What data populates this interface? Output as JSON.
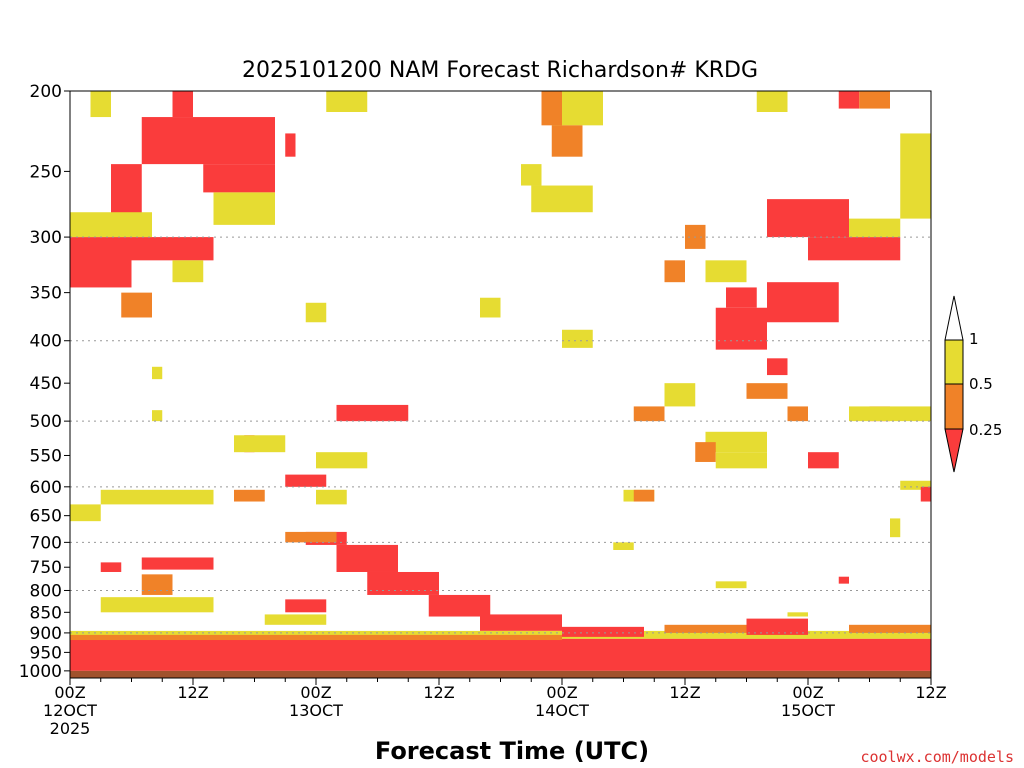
{
  "chart_data": {
    "type": "heatmap",
    "title": "2025101200 NAM Forecast Richardson# KRDG",
    "xlabel": "Forecast Time (UTC)",
    "credit": "coolwx.com/models",
    "x_ticks": [
      {
        "hour": 0,
        "line1": "00Z",
        "line2": "12OCT",
        "line3": "2025"
      },
      {
        "hour": 12,
        "line1": "12Z",
        "line2": "",
        "line3": ""
      },
      {
        "hour": 24,
        "line1": "00Z",
        "line2": "13OCT",
        "line3": ""
      },
      {
        "hour": 36,
        "line1": "12Z",
        "line2": "",
        "line3": ""
      },
      {
        "hour": 48,
        "line1": "00Z",
        "line2": "14OCT",
        "line3": ""
      },
      {
        "hour": 60,
        "line1": "12Z",
        "line2": "",
        "line3": ""
      },
      {
        "hour": 72,
        "line1": "00Z",
        "line2": "15OCT",
        "line3": ""
      },
      {
        "hour": 84,
        "line1": "12Z",
        "line2": "",
        "line3": ""
      }
    ],
    "xlim": [
      0,
      84
    ],
    "y_ticks": [
      "200",
      "250",
      "300",
      "350",
      "400",
      "450",
      "500",
      "550",
      "600",
      "650",
      "700",
      "750",
      "800",
      "850",
      "900",
      "950",
      "1000"
    ],
    "ylim": [
      1020,
      200
    ],
    "y_scale": "log",
    "grid": "dotted at 300, 400, 500, 600, 700, 800, 900",
    "legend": {
      "placement": "right",
      "labels": [
        "1",
        "0.5",
        "0.25"
      ],
      "colors": {
        "ge_1": "#ffffff",
        "0.5_to_1": "#e6dc32",
        "0.25_to_0.5": "#f08228",
        "lt_0.25": "#fa3c3c"
      }
    },
    "ground_color": "#a0522d",
    "regions": [
      {
        "level": "lt_0.25",
        "t0": 0,
        "t1": 6,
        "p0": 300,
        "p1": 345
      },
      {
        "level": "lt_0.25",
        "t0": 6,
        "t1": 14,
        "p0": 300,
        "p1": 320
      },
      {
        "level": "lt_0.25",
        "t0": 4,
        "t1": 7,
        "p0": 245,
        "p1": 300
      },
      {
        "level": "lt_0.25",
        "t0": 7,
        "t1": 20,
        "p0": 215,
        "p1": 245
      },
      {
        "level": "lt_0.25",
        "t0": 13,
        "t1": 20,
        "p0": 245,
        "p1": 265
      },
      {
        "level": "lt_0.25",
        "t0": 10,
        "t1": 12,
        "p0": 200,
        "p1": 215
      },
      {
        "level": "lt_0.25",
        "t0": 21,
        "t1": 22,
        "p0": 225,
        "p1": 240
      },
      {
        "level": "0.25_to_0.5",
        "t0": 5,
        "t1": 8,
        "p0": 350,
        "p1": 375
      },
      {
        "level": "0.5_to_1",
        "t0": 0,
        "t1": 8,
        "p0": 280,
        "p1": 300
      },
      {
        "level": "0.5_to_1",
        "t0": 2,
        "t1": 4,
        "p0": 200,
        "p1": 215
      },
      {
        "level": "0.5_to_1",
        "t0": 14,
        "t1": 20,
        "p0": 265,
        "p1": 290
      },
      {
        "level": "0.5_to_1",
        "t0": 10,
        "t1": 13,
        "p0": 320,
        "p1": 340
      },
      {
        "level": "0.5_to_1",
        "t0": 23,
        "t1": 25,
        "p0": 360,
        "p1": 380
      },
      {
        "level": "0.5_to_1",
        "t0": 8,
        "t1": 9,
        "p0": 430,
        "p1": 445
      },
      {
        "level": "0.5_to_1",
        "t0": 8,
        "t1": 9,
        "p0": 485,
        "p1": 500
      },
      {
        "level": "lt_0.25",
        "t0": 26,
        "t1": 33,
        "p0": 478,
        "p1": 500
      },
      {
        "level": "0.5_to_1",
        "t0": 24,
        "t1": 29,
        "p0": 545,
        "p1": 570
      },
      {
        "level": "lt_0.25",
        "t0": 21,
        "t1": 25,
        "p0": 580,
        "p1": 600
      },
      {
        "level": "lt_0.25",
        "t0": 17,
        "t1": 18,
        "p0": 520,
        "p1": 545
      },
      {
        "level": "0.5_to_1",
        "t0": 16,
        "t1": 21,
        "p0": 520,
        "p1": 545
      },
      {
        "level": "0.5_to_1",
        "t0": 3,
        "t1": 14,
        "p0": 605,
        "p1": 630
      },
      {
        "level": "0.5_to_1",
        "t0": 0,
        "t1": 3,
        "p0": 630,
        "p1": 660
      },
      {
        "level": "0.25_to_0.5",
        "t0": 16,
        "t1": 19,
        "p0": 605,
        "p1": 625
      },
      {
        "level": "0.5_to_1",
        "t0": 24,
        "t1": 27,
        "p0": 605,
        "p1": 630
      },
      {
        "level": "lt_0.25",
        "t0": 23,
        "t1": 27,
        "p0": 680,
        "p1": 705
      },
      {
        "level": "lt_0.25",
        "t0": 26,
        "t1": 32,
        "p0": 705,
        "p1": 760
      },
      {
        "level": "lt_0.25",
        "t0": 29,
        "t1": 36,
        "p0": 760,
        "p1": 810
      },
      {
        "level": "lt_0.25",
        "t0": 35,
        "t1": 41,
        "p0": 810,
        "p1": 860
      },
      {
        "level": "lt_0.25",
        "t0": 40,
        "t1": 48,
        "p0": 855,
        "p1": 895
      },
      {
        "level": "0.25_to_0.5",
        "t0": 21,
        "t1": 26,
        "p0": 680,
        "p1": 700
      },
      {
        "level": "lt_0.25",
        "t0": 3,
        "t1": 5,
        "p0": 740,
        "p1": 760
      },
      {
        "level": "lt_0.25",
        "t0": 7,
        "t1": 14,
        "p0": 730,
        "p1": 755
      },
      {
        "level": "0.25_to_0.5",
        "t0": 7,
        "t1": 10,
        "p0": 765,
        "p1": 810
      },
      {
        "level": "0.5_to_1",
        "t0": 3,
        "t1": 14,
        "p0": 815,
        "p1": 850
      },
      {
        "level": "lt_0.25",
        "t0": 21,
        "t1": 25,
        "p0": 820,
        "p1": 850
      },
      {
        "level": "0.5_to_1",
        "t0": 19,
        "t1": 25,
        "p0": 855,
        "p1": 880
      },
      {
        "level": "0.5_to_1",
        "t0": 0,
        "t1": 84,
        "p0": 895,
        "p1": 915
      },
      {
        "level": "lt_0.25",
        "t0": 0,
        "t1": 84,
        "p0": 915,
        "p1": 1000
      },
      {
        "level": "0.25_to_0.5",
        "t0": 0,
        "t1": 48,
        "p0": 905,
        "p1": 918
      },
      {
        "level": "lt_0.25",
        "t0": 48,
        "t1": 56,
        "p0": 885,
        "p1": 910
      },
      {
        "level": "lt_0.25",
        "t0": 66,
        "t1": 72,
        "p0": 865,
        "p1": 905
      },
      {
        "level": "0.25_to_0.5",
        "t0": 58,
        "t1": 66,
        "p0": 880,
        "p1": 900
      },
      {
        "level": "0.5_to_1",
        "t0": 70,
        "t1": 72,
        "p0": 850,
        "p1": 860
      },
      {
        "level": "0.25_to_0.5",
        "t0": 76,
        "t1": 84,
        "p0": 880,
        "p1": 900
      },
      {
        "level": "0.5_to_1",
        "t0": 47,
        "t1": 52,
        "p0": 200,
        "p1": 220
      },
      {
        "level": "0.25_to_0.5",
        "t0": 46,
        "t1": 48,
        "p0": 200,
        "p1": 220
      },
      {
        "level": "0.25_to_0.5",
        "t0": 47,
        "t1": 50,
        "p0": 220,
        "p1": 240
      },
      {
        "level": "0.5_to_1",
        "t0": 44,
        "t1": 46,
        "p0": 245,
        "p1": 260
      },
      {
        "level": "0.5_to_1",
        "t0": 45,
        "t1": 51,
        "p0": 260,
        "p1": 280
      },
      {
        "level": "0.5_to_1",
        "t0": 25,
        "t1": 29,
        "p0": 200,
        "p1": 212
      },
      {
        "level": "0.5_to_1",
        "t0": 40,
        "t1": 42,
        "p0": 355,
        "p1": 375
      },
      {
        "level": "0.5_to_1",
        "t0": 48,
        "t1": 51,
        "p0": 388,
        "p1": 408
      },
      {
        "level": "lt_0.25",
        "t0": 68,
        "t1": 76,
        "p0": 270,
        "p1": 300
      },
      {
        "level": "lt_0.25",
        "t0": 72,
        "t1": 81,
        "p0": 300,
        "p1": 320
      },
      {
        "level": "lt_0.25",
        "t0": 75,
        "t1": 77,
        "p0": 200,
        "p1": 210
      },
      {
        "level": "0.25_to_0.5",
        "t0": 77,
        "t1": 80,
        "p0": 200,
        "p1": 210
      },
      {
        "level": "0.5_to_1",
        "t0": 67,
        "t1": 70,
        "p0": 200,
        "p1": 212
      },
      {
        "level": "0.5_to_1",
        "t0": 81,
        "t1": 84,
        "p0": 225,
        "p1": 285
      },
      {
        "level": "0.5_to_1",
        "t0": 76,
        "t1": 81,
        "p0": 285,
        "p1": 300
      },
      {
        "level": "lt_0.25",
        "t0": 63,
        "t1": 68,
        "p0": 365,
        "p1": 410
      },
      {
        "level": "lt_0.25",
        "t0": 64,
        "t1": 67,
        "p0": 345,
        "p1": 365
      },
      {
        "level": "0.5_to_1",
        "t0": 62,
        "t1": 66,
        "p0": 320,
        "p1": 340
      },
      {
        "level": "lt_0.25",
        "t0": 68,
        "t1": 75,
        "p0": 340,
        "p1": 380
      },
      {
        "level": "0.25_to_0.5",
        "t0": 58,
        "t1": 60,
        "p0": 320,
        "p1": 340
      },
      {
        "level": "0.25_to_0.5",
        "t0": 60,
        "t1": 62,
        "p0": 290,
        "p1": 310
      },
      {
        "level": "lt_0.25",
        "t0": 68,
        "t1": 70,
        "p0": 420,
        "p1": 440
      },
      {
        "level": "0.25_to_0.5",
        "t0": 66,
        "t1": 70,
        "p0": 450,
        "p1": 470
      },
      {
        "level": "0.5_to_1",
        "t0": 58,
        "t1": 61,
        "p0": 450,
        "p1": 480
      },
      {
        "level": "0.25_to_0.5",
        "t0": 55,
        "t1": 58,
        "p0": 480,
        "p1": 500
      },
      {
        "level": "0.25_to_0.5",
        "t0": 70,
        "t1": 72,
        "p0": 480,
        "p1": 500
      },
      {
        "level": "lt_0.25",
        "t0": 78,
        "t1": 80,
        "p0": 480,
        "p1": 500
      },
      {
        "level": "0.5_to_1",
        "t0": 76,
        "t1": 84,
        "p0": 480,
        "p1": 500
      },
      {
        "level": "0.5_to_1",
        "t0": 62,
        "t1": 68,
        "p0": 515,
        "p1": 545
      },
      {
        "level": "0.25_to_0.5",
        "t0": 61,
        "t1": 63,
        "p0": 530,
        "p1": 560
      },
      {
        "level": "0.5_to_1",
        "t0": 63,
        "t1": 68,
        "p0": 545,
        "p1": 570
      },
      {
        "level": "lt_0.25",
        "t0": 72,
        "t1": 75,
        "p0": 545,
        "p1": 570
      },
      {
        "level": "0.5_to_1",
        "t0": 54,
        "t1": 57,
        "p0": 605,
        "p1": 625
      },
      {
        "level": "0.25_to_0.5",
        "t0": 55,
        "t1": 57,
        "p0": 605,
        "p1": 625
      },
      {
        "level": "0.5_to_1",
        "t0": 81,
        "t1": 84,
        "p0": 590,
        "p1": 605
      },
      {
        "level": "lt_0.25",
        "t0": 83,
        "t1": 84,
        "p0": 600,
        "p1": 625
      },
      {
        "level": "0.5_to_1",
        "t0": 80,
        "t1": 81,
        "p0": 655,
        "p1": 690
      },
      {
        "level": "0.5_to_1",
        "t0": 53,
        "t1": 55,
        "p0": 700,
        "p1": 715
      },
      {
        "level": "0.5_to_1",
        "t0": 63,
        "t1": 66,
        "p0": 780,
        "p1": 795
      },
      {
        "level": "lt_0.25",
        "t0": 75,
        "t1": 76,
        "p0": 770,
        "p1": 785
      }
    ]
  }
}
